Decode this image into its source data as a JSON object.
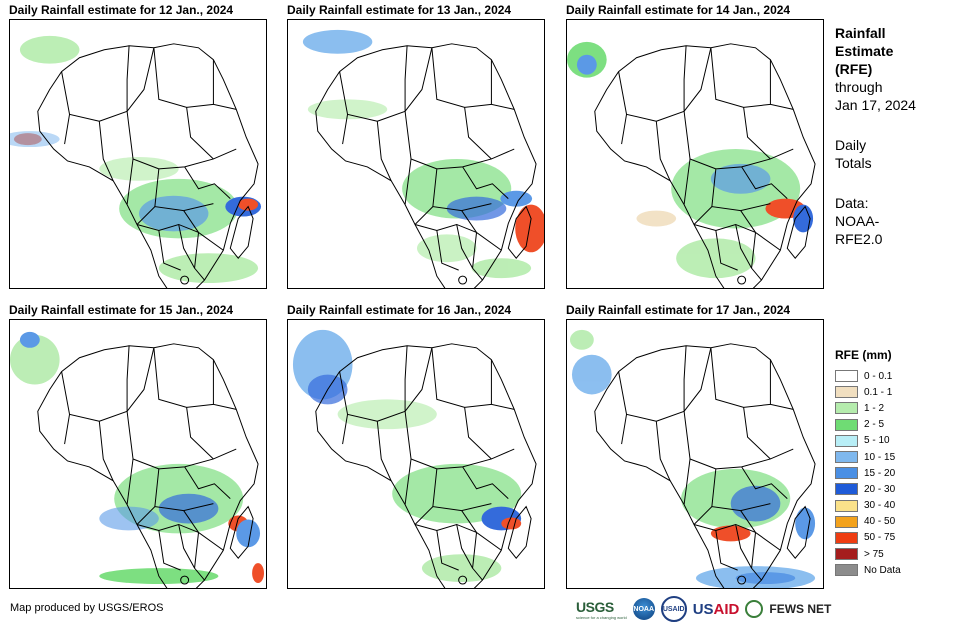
{
  "panels": [
    {
      "title": "Daily Rainfall estimate for 12 Jan., 2024"
    },
    {
      "title": "Daily Rainfall estimate for 13 Jan., 2024"
    },
    {
      "title": "Daily Rainfall estimate for 14 Jan., 2024"
    },
    {
      "title": "Daily Rainfall estimate for 15 Jan., 2024"
    },
    {
      "title": "Daily Rainfall estimate for 16 Jan., 2024"
    },
    {
      "title": "Daily Rainfall estimate for 17 Jan., 2024"
    }
  ],
  "side": {
    "heading": [
      "Rainfall",
      "Estimate",
      "(RFE)"
    ],
    "through": [
      "through",
      "Jan 17, 2024"
    ],
    "totals": [
      "Daily",
      "Totals"
    ],
    "source": [
      "Data:",
      "NOAA-",
      "RFE2.0"
    ]
  },
  "legend": {
    "title": "RFE (mm)",
    "items": [
      {
        "label": "0 - 0.1",
        "color": "#ffffff"
      },
      {
        "label": "0.1 - 1",
        "color": "#f1dfc0"
      },
      {
        "label": "1 - 2",
        "color": "#b5ecad"
      },
      {
        "label": "2 - 5",
        "color": "#6fdc74"
      },
      {
        "label": "5 - 10",
        "color": "#b8eef6"
      },
      {
        "label": "10 - 15",
        "color": "#7fb8ee"
      },
      {
        "label": "15 - 20",
        "color": "#4a8fe4"
      },
      {
        "label": "20 - 30",
        "color": "#1f5bd8"
      },
      {
        "label": "30 - 40",
        "color": "#fbe28a"
      },
      {
        "label": "40 - 50",
        "color": "#f3a21c"
      },
      {
        "label": "50 - 75",
        "color": "#ee3d12"
      },
      {
        "label": "> 75",
        "color": "#a51d1d"
      },
      {
        "label": "No Data",
        "color": "#8c8c8c"
      }
    ]
  },
  "credit": "Map produced by USGS/EROS",
  "logos": {
    "usgs": "USGS",
    "usgs_sub": "science for a changing world",
    "noaa": "NOAA",
    "usaid_seal": "USAID",
    "usaid": "US",
    "usaid_accent": "AID",
    "fews": "FEWS NET"
  }
}
